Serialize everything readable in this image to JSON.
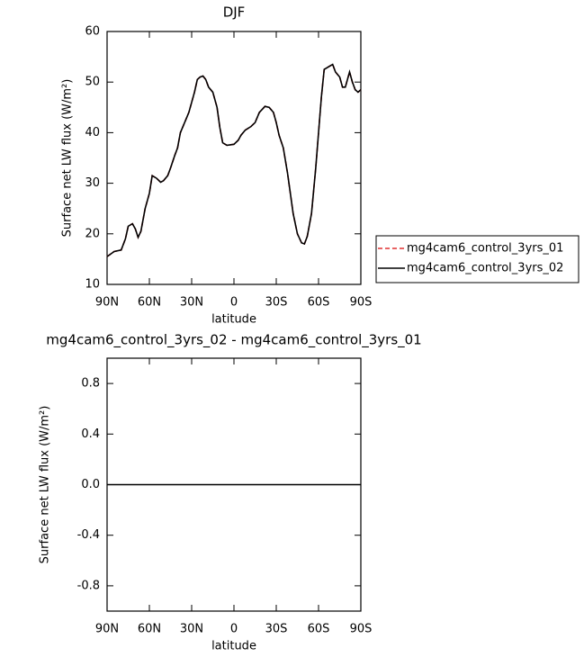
{
  "chart_data": [
    {
      "type": "line",
      "title": "DJF",
      "xlabel": "latitude",
      "ylabel": "Surface net LW flux (W/m²)",
      "x": [
        90,
        85,
        80,
        77,
        75,
        72,
        70,
        68,
        66,
        63,
        60,
        58,
        55,
        52,
        50,
        47,
        45,
        42,
        40,
        38,
        35,
        32,
        30,
        28,
        26,
        24,
        22,
        20,
        18,
        15,
        12,
        10,
        8,
        5,
        0,
        -3,
        -5,
        -8,
        -12,
        -15,
        -18,
        -22,
        -25,
        -28,
        -30,
        -32,
        -35,
        -38,
        -40,
        -42,
        -45,
        -48,
        -50,
        -52,
        -55,
        -58,
        -60,
        -62,
        -64,
        -67,
        -70,
        -72,
        -75,
        -77,
        -79,
        -81,
        -82,
        -84,
        -86,
        -88,
        -90
      ],
      "series": [
        {
          "name": "mg4cam6_control_3yrs_01",
          "color": "#e03030",
          "linestyle": "dashed",
          "values": [
            15.5,
            16.5,
            16.8,
            19,
            21.5,
            22,
            21,
            19.3,
            20.5,
            25,
            28,
            31.5,
            31,
            30.2,
            30.5,
            31.5,
            33,
            35.5,
            37,
            40,
            42,
            44,
            46,
            48,
            50.5,
            51,
            51.2,
            50.5,
            49,
            48,
            45,
            41,
            38,
            37.5,
            37.7,
            38.5,
            39.5,
            40.5,
            41.2,
            42,
            44,
            45.2,
            45,
            44,
            42,
            39.5,
            37,
            32,
            28,
            24,
            20,
            18.2,
            18,
            19.5,
            24,
            33,
            40,
            47,
            52.5,
            53,
            53.5,
            52,
            51,
            49,
            49,
            51,
            52,
            50,
            48.5,
            48,
            48.5
          ]
        },
        {
          "name": "mg4cam6_control_3yrs_02",
          "color": "#000000",
          "linestyle": "solid",
          "values": [
            15.5,
            16.5,
            16.8,
            19,
            21.5,
            22,
            21,
            19.3,
            20.5,
            25,
            28,
            31.5,
            31,
            30.2,
            30.5,
            31.5,
            33,
            35.5,
            37,
            40,
            42,
            44,
            46,
            48,
            50.5,
            51,
            51.2,
            50.5,
            49,
            48,
            45,
            41,
            38,
            37.5,
            37.7,
            38.5,
            39.5,
            40.5,
            41.2,
            42,
            44,
            45.2,
            45,
            44,
            42,
            39.5,
            37,
            32,
            28,
            24,
            20,
            18.2,
            18,
            19.5,
            24,
            33,
            40,
            47,
            52.5,
            53,
            53.5,
            52,
            51,
            49,
            49,
            51,
            52,
            50,
            48.5,
            48,
            48.5
          ]
        }
      ],
      "xlim": [
        90,
        -90
      ],
      "xticks": [
        {
          "value": 90,
          "label": "90N"
        },
        {
          "value": 60,
          "label": "60N"
        },
        {
          "value": 30,
          "label": "30N"
        },
        0,
        {
          "value": -30,
          "label": "30S"
        },
        {
          "value": -60,
          "label": "60S"
        },
        {
          "value": -90,
          "label": "90S"
        }
      ],
      "ylim": [
        10,
        60
      ],
      "yticks": [
        10,
        20,
        30,
        40,
        50,
        60
      ],
      "legend": "right"
    },
    {
      "type": "line",
      "title": "mg4cam6_control_3yrs_02 - mg4cam6_control_3yrs_01",
      "xlabel": "latitude",
      "ylabel": "Surface net LW flux (W/m²)",
      "x": [
        90,
        -90
      ],
      "series": [
        {
          "color": "#000000",
          "linestyle": "solid",
          "values": [
            0,
            0
          ]
        }
      ],
      "xlim": [
        90,
        -90
      ],
      "xticks": [
        {
          "value": 90,
          "label": "90N"
        },
        {
          "value": 60,
          "label": "60N"
        },
        {
          "value": 30,
          "label": "30N"
        },
        0,
        {
          "value": -30,
          "label": "30S"
        },
        {
          "value": -60,
          "label": "60S"
        },
        {
          "value": -90,
          "label": "90S"
        }
      ],
      "ylim": [
        -1,
        1
      ],
      "yticks": [
        0.8,
        0.4,
        {
          "value": 0,
          "label": "0.0"
        },
        -0.4,
        -0.8
      ]
    }
  ]
}
